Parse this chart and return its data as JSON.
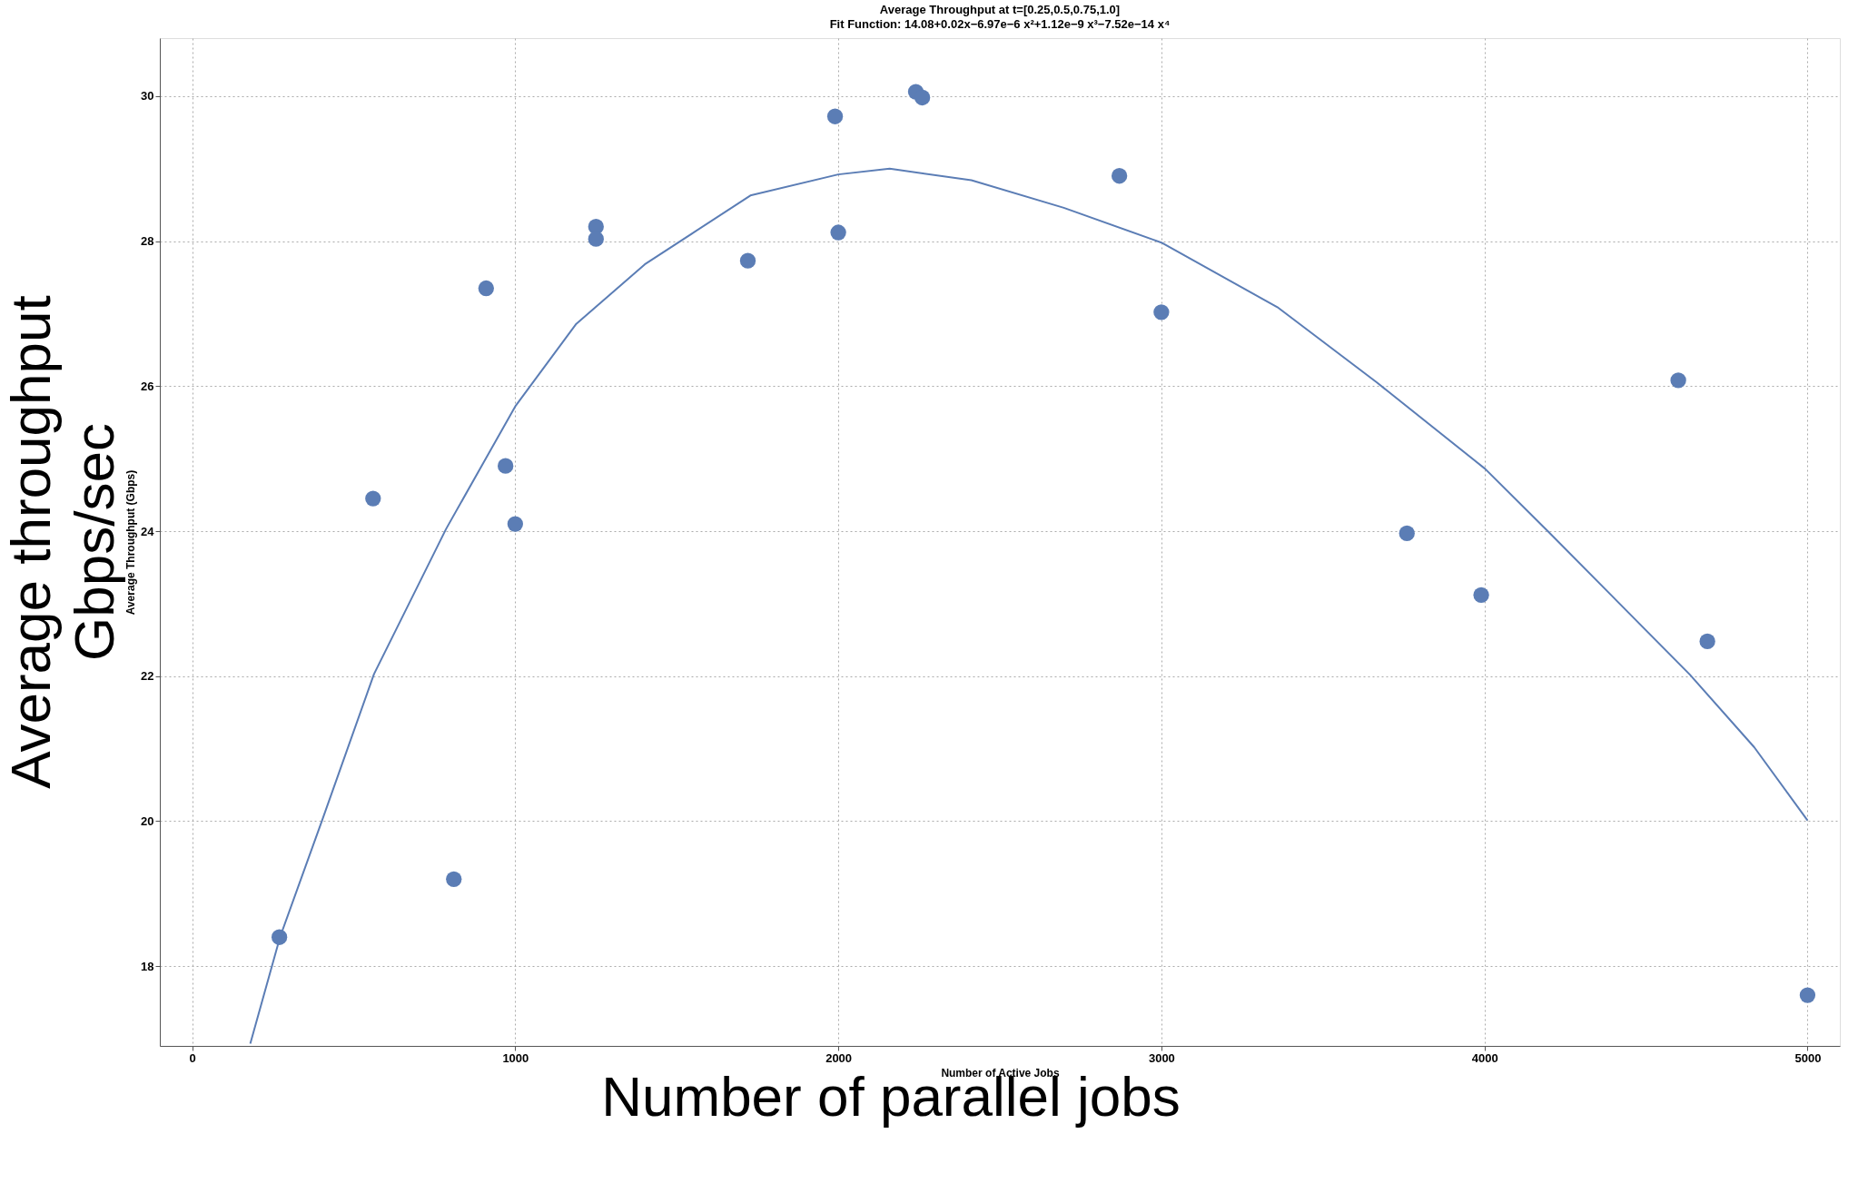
{
  "chart_data": {
    "type": "scatter",
    "title": "Average Throughput at t=[0.25,0.5,0.75,1.0]",
    "subtitle": "Fit Function: 14.08+0.02x−6.97e−6 x²+1.12e−9 x³−7.52e−14 x⁴",
    "xlabel": "Number of Active Jobs",
    "ylabel": "Average Throughput (Gbps)",
    "annotations": [
      "Average throughput\nGbps/sec",
      "Number of parallel jobs"
    ],
    "xlim": [
      -100,
      5100
    ],
    "ylim": [
      16.9,
      30.8
    ],
    "xticks": [
      0,
      1000,
      2000,
      3000,
      4000,
      5000
    ],
    "yticks": [
      18,
      20,
      22,
      24,
      26,
      28,
      30
    ],
    "grid": true,
    "marker": "circle",
    "series": [
      {
        "color": "#5b7db5",
        "x": [
          270,
          560,
          810,
          910,
          970,
          1000,
          1250,
          1250,
          1720,
          1990,
          2000,
          2240,
          2260,
          2870,
          3000,
          3760,
          3990,
          4600,
          4690,
          5000
        ],
        "values": [
          18.4,
          24.45,
          19.2,
          27.35,
          24.9,
          24.1,
          28.2,
          28.03,
          27.73,
          29.72,
          28.12,
          30.06,
          29.98,
          28.9,
          27.02,
          23.97,
          23.12,
          26.08,
          22.48,
          17.6
        ]
      },
      {
        "type": "line",
        "color": "#5b7db5",
        "line_style": "solid",
        "marker": "none",
        "x": [
          180,
          272,
          403,
          563,
          786,
          1000,
          1189,
          1401,
          1728,
          2000,
          2159,
          2412,
          2698,
          3000,
          3359,
          3667,
          4002,
          4196,
          4394,
          4636,
          4835,
          5000
        ],
        "values": [
          16.93,
          18.4,
          20.02,
          22.03,
          24.03,
          25.72,
          26.86,
          27.68,
          28.63,
          28.92,
          29.0,
          28.84,
          28.46,
          27.98,
          27.09,
          26.05,
          24.86,
          24.0,
          23.11,
          22.02,
          21.02,
          20.01
        ]
      }
    ]
  }
}
